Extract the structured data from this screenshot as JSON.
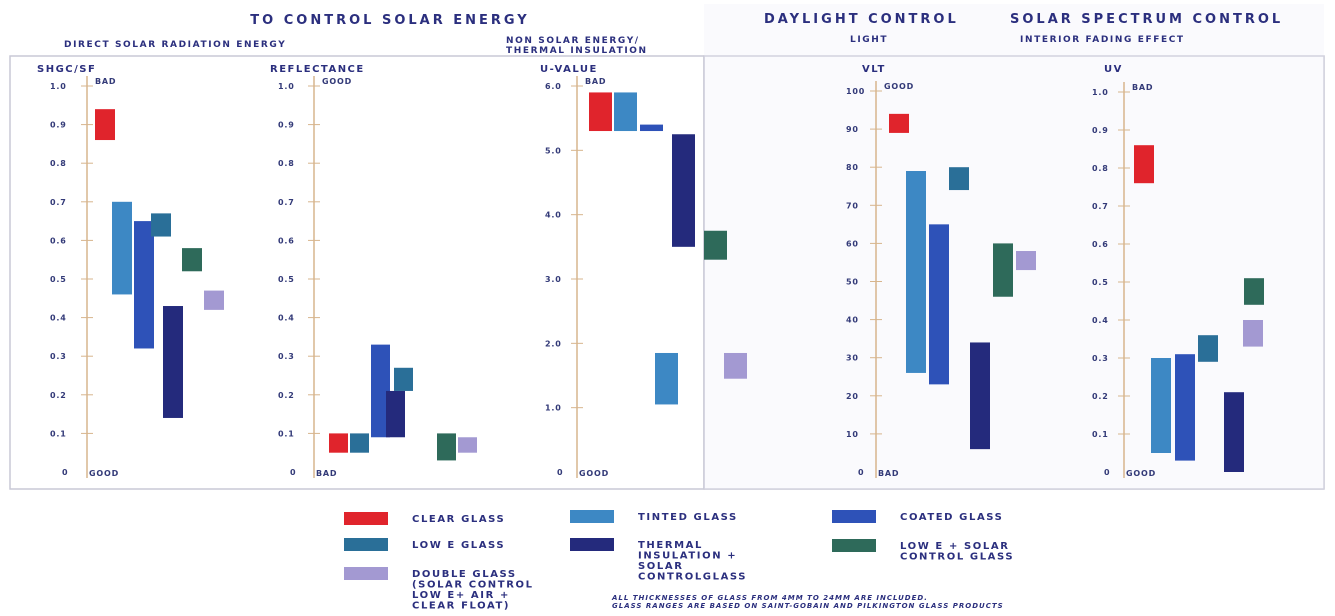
{
  "headers": {
    "main": "TO CONTROL SOLAR ENERGY",
    "daylight": "DAYLIGHT CONTROL",
    "spectrum": "SOLAR SPECTRUM CONTROL"
  },
  "subheaders": {
    "direct": "DIRECT SOLAR RADIATION ENERGY",
    "non_solar_1": "NON SOLAR ENERGY/",
    "non_solar_2": "THERMAL INSULATION",
    "light": "LIGHT",
    "fading": "INTERIOR FADING EFFECT"
  },
  "colors": {
    "clear": "#e0242c",
    "tinted": "#3d88c4",
    "coated": "#2e52b8",
    "lowe": "#2a6f98",
    "thermal": "#242a7c",
    "lowe_solar": "#2e6a5a",
    "double": "#a399d2"
  },
  "legend": [
    {
      "key": "clear",
      "lines": [
        "CLEAR GLASS"
      ]
    },
    {
      "key": "tinted",
      "lines": [
        "TINTED GLASS"
      ]
    },
    {
      "key": "coated",
      "lines": [
        "COATED GLASS"
      ]
    },
    {
      "key": "lowe",
      "lines": [
        "LOW E GLASS"
      ]
    },
    {
      "key": "thermal",
      "lines": [
        "THERMAL",
        "INSULATION +",
        "SOLAR",
        "CONTROLGLASS"
      ]
    },
    {
      "key": "lowe_solar",
      "lines": [
        "LOW E + SOLAR",
        "CONTROL GLASS"
      ]
    },
    {
      "key": "double",
      "lines": [
        "DOUBLE GLASS",
        "(SOLAR CONTROL",
        "LOW E+ AIR +",
        "CLEAR FLOAT)"
      ]
    }
  ],
  "footnote": [
    "ALL THICKNESSES OF GLASS FROM 4MM TO 24MM ARE INCLUDED.",
    "GLASS RANGES ARE BASED ON SAINT-GOBAIN AND PILKINGTON GLASS PRODUCTS"
  ],
  "chart_data": [
    {
      "type": "bar",
      "ylabel": "SHGC/SF",
      "ylim": [
        0,
        1.0
      ],
      "ticks": [
        "0",
        "0.1",
        "0.2",
        "0.3",
        "0.4",
        "0.5",
        "0.6",
        "0.7",
        "0.8",
        "0.9",
        "1.0"
      ],
      "top_note": "BAD",
      "bottom_note": "GOOD",
      "series": [
        {
          "key": "clear",
          "range": [
            0.86,
            0.94
          ]
        },
        {
          "key": "tinted",
          "range": [
            0.46,
            0.7
          ]
        },
        {
          "key": "coated",
          "range": [
            0.32,
            0.65
          ]
        },
        {
          "key": "lowe",
          "range": [
            0.61,
            0.67
          ]
        },
        {
          "key": "thermal",
          "range": [
            0.14,
            0.43
          ]
        },
        {
          "key": "lowe_solar",
          "range": [
            0.52,
            0.58
          ]
        },
        {
          "key": "double",
          "range": [
            0.42,
            0.47
          ]
        }
      ]
    },
    {
      "type": "bar",
      "ylabel": "REFLECTANCE",
      "ylim": [
        0,
        1.0
      ],
      "ticks": [
        "0",
        "0.1",
        "0.2",
        "0.3",
        "0.4",
        "0.5",
        "0.6",
        "0.7",
        "0.8",
        "0.9",
        "1.0"
      ],
      "top_note": "GOOD",
      "bottom_note": "BAD",
      "series": [
        {
          "key": "clear",
          "range": [
            0.05,
            0.1
          ]
        },
        {
          "key": "lowe",
          "range": [
            0.05,
            0.1
          ]
        },
        {
          "key": "coated",
          "range": [
            0.09,
            0.33
          ]
        },
        {
          "key": "lowe",
          "range": [
            0.21,
            0.27
          ]
        },
        {
          "key": "thermal",
          "range": [
            0.09,
            0.21
          ]
        },
        {
          "key": "lowe_solar",
          "range": [
            0.03,
            0.1
          ]
        },
        {
          "key": "double",
          "range": [
            0.05,
            0.09
          ]
        }
      ]
    },
    {
      "type": "bar",
      "ylabel": "U-VALUE",
      "ylim": [
        0,
        6.0
      ],
      "ticks": [
        "0",
        "1.0",
        "2.0",
        "3.0",
        "4.0",
        "5.0",
        "6.0"
      ],
      "top_note": "BAD",
      "bottom_note": "GOOD",
      "series": [
        {
          "key": "clear",
          "range": [
            5.3,
            5.9
          ]
        },
        {
          "key": "tinted",
          "range": [
            5.3,
            5.9
          ]
        },
        {
          "key": "coated",
          "range": [
            5.3,
            5.4
          ]
        },
        {
          "key": "tinted",
          "range": [
            1.05,
            1.85
          ]
        },
        {
          "key": "thermal",
          "range": [
            3.5,
            5.25
          ]
        },
        {
          "key": "lowe_solar",
          "range": [
            3.3,
            3.75
          ]
        },
        {
          "key": "double",
          "range": [
            1.45,
            1.85
          ]
        }
      ]
    },
    {
      "type": "bar",
      "ylabel": "VLT",
      "ylim": [
        0,
        100
      ],
      "ticks": [
        "0",
        "10",
        "20",
        "30",
        "40",
        "50",
        "60",
        "70",
        "80",
        "90",
        "100"
      ],
      "top_note": "GOOD",
      "bottom_note": "BAD",
      "series": [
        {
          "key": "clear",
          "range": [
            89,
            94
          ]
        },
        {
          "key": "tinted",
          "range": [
            26,
            79
          ]
        },
        {
          "key": "coated",
          "range": [
            23,
            65
          ]
        },
        {
          "key": "lowe",
          "range": [
            74,
            80
          ]
        },
        {
          "key": "thermal",
          "range": [
            6,
            34
          ]
        },
        {
          "key": "lowe_solar",
          "range": [
            46,
            60
          ]
        },
        {
          "key": "double",
          "range": [
            53,
            58
          ]
        }
      ]
    },
    {
      "type": "bar",
      "ylabel": "UV",
      "ylim": [
        0,
        1.0
      ],
      "ticks": [
        "0",
        "0.1",
        "0.2",
        "0.3",
        "0.4",
        "0.5",
        "0.6",
        "0.7",
        "0.8",
        "0.9",
        "1.0"
      ],
      "top_note": "BAD",
      "bottom_note": "GOOD",
      "series": [
        {
          "key": "tinted",
          "range": [
            0.05,
            0.3
          ]
        },
        {
          "key": "coated",
          "range": [
            0.03,
            0.31
          ]
        },
        {
          "key": "lowe",
          "range": [
            0.29,
            0.36
          ]
        },
        {
          "key": "thermal",
          "range": [
            0.0,
            0.21
          ]
        },
        {
          "key": "lowe_solar",
          "range": [
            0.44,
            0.51
          ]
        },
        {
          "key": "double",
          "range": [
            0.33,
            0.4
          ]
        },
        {
          "key": "clear",
          "range": [
            0.76,
            0.86
          ]
        }
      ]
    }
  ]
}
